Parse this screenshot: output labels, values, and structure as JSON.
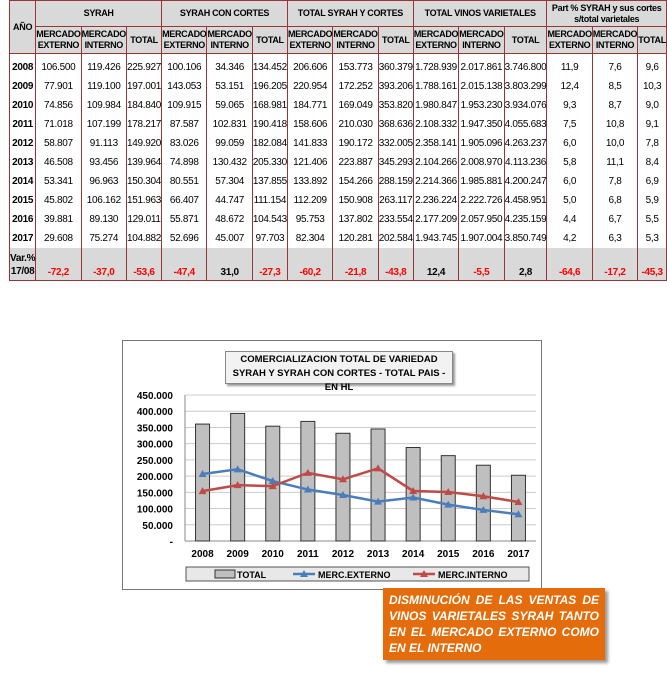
{
  "table": {
    "year_header": "AÑO",
    "groups": [
      "SYRAH",
      "SYRAH CON CORTES",
      "TOTAL SYRAH Y CORTES",
      "TOTAL VINOS VARIETALES",
      "Part % SYRAH y sus cortes s/total varietales"
    ],
    "subheaders": [
      [
        "MERCADO EXTERNO",
        "MERCADO INTERNO",
        "TOTAL"
      ],
      [
        "MERCADO EXTERNO",
        "MERCADO INTERNO",
        "TOTAL"
      ],
      [
        "MERCADO EXTERNO",
        "MERCADO INTERNO",
        "TOTAL"
      ],
      [
        "MERCADO EXTERNO",
        "MERCADO INTERNO",
        "TOTAL"
      ],
      [
        "MERCADO EXTERNO",
        "MERCADO INTERNO",
        "TOTAL"
      ]
    ],
    "rows": [
      [
        "2008",
        "106.500",
        "119.426",
        "225.927",
        "100.106",
        "34.346",
        "134.452",
        "206.606",
        "153.773",
        "360.379",
        "1.728.939",
        "2.017.861",
        "3.746.800",
        "11,9",
        "7,6",
        "9,6"
      ],
      [
        "2009",
        "77.901",
        "119.100",
        "197.001",
        "143.053",
        "53.151",
        "196.205",
        "220.954",
        "172.252",
        "393.206",
        "1.788.161",
        "2.015.138",
        "3.803.299",
        "12,4",
        "8,5",
        "10,3"
      ],
      [
        "2010",
        "74.856",
        "109.984",
        "184.840",
        "109.915",
        "59.065",
        "168.981",
        "184.771",
        "169.049",
        "353.820",
        "1.980.847",
        "1.953.230",
        "3.934.076",
        "9,3",
        "8,7",
        "9,0"
      ],
      [
        "2011",
        "71.018",
        "107.199",
        "178.217",
        "87.587",
        "102.831",
        "190.418",
        "158.606",
        "210.030",
        "368.636",
        "2.108.332",
        "1.947.350",
        "4.055.683",
        "7,5",
        "10,8",
        "9,1"
      ],
      [
        "2012",
        "58.807",
        "91.113",
        "149.920",
        "83.026",
        "99.059",
        "182.084",
        "141.833",
        "190.172",
        "332.005",
        "2.358.141",
        "1.905.096",
        "4.263.237",
        "6,0",
        "10,0",
        "7,8"
      ],
      [
        "2013",
        "46.508",
        "93.456",
        "139.964",
        "74.898",
        "130.432",
        "205.330",
        "121.406",
        "223.887",
        "345.293",
        "2.104.266",
        "2.008.970",
        "4.113.236",
        "5,8",
        "11,1",
        "8,4"
      ],
      [
        "2014",
        "53.341",
        "96.963",
        "150.304",
        "80.551",
        "57.304",
        "137.855",
        "133.892",
        "154.266",
        "288.159",
        "2.214.366",
        "1.985.881",
        "4.200.247",
        "6,0",
        "7,8",
        "6,9"
      ],
      [
        "2015",
        "45.802",
        "106.162",
        "151.963",
        "66.407",
        "44.747",
        "111.154",
        "112.209",
        "150.908",
        "263.117",
        "2.236.224",
        "2.222.726",
        "4.458.951",
        "5,0",
        "6,8",
        "5,9"
      ],
      [
        "2016",
        "39.881",
        "89.130",
        "129.011",
        "55.871",
        "48.672",
        "104.543",
        "95.753",
        "137.802",
        "233.554",
        "2.177.209",
        "2.057.950",
        "4.235.159",
        "4,4",
        "6,7",
        "5,5"
      ],
      [
        "2017",
        "29.608",
        "75.274",
        "104.882",
        "52.696",
        "45.007",
        "97.703",
        "82.304",
        "120.281",
        "202.584",
        "1.943.745",
        "1.907.004",
        "3.850.749",
        "4,2",
        "6,3",
        "5,3"
      ]
    ],
    "var_label": "Var.% 17/08",
    "var_values": [
      "-72,2",
      "-37,0",
      "-53,6",
      "-47,4",
      "31,0",
      "-27,3",
      "-60,2",
      "-21,8",
      "-43,8",
      "12,4",
      "-5,5",
      "2,8",
      "-64,6",
      "-17,2",
      "-45,3"
    ],
    "negative_color": "#ff0000"
  },
  "chart_data": {
    "type": "bar+line",
    "title": "COMERCIALIZACION TOTAL DE VARIEDAD SYRAH Y SYRAH CON CORTES - TOTAL PAIS - EN HL",
    "categories": [
      "2008",
      "2009",
      "2010",
      "2011",
      "2012",
      "2013",
      "2014",
      "2015",
      "2016",
      "2017"
    ],
    "ylim": [
      0,
      450000
    ],
    "yticks": [
      "-",
      "50.000",
      "100.000",
      "150.000",
      "200.000",
      "250.000",
      "300.000",
      "350.000",
      "400.000",
      "450.000"
    ],
    "grid": true,
    "legend_position": "bottom",
    "series": [
      {
        "name": "TOTAL",
        "kind": "bar",
        "color": "#bfbfbf",
        "values": [
          360379,
          393206,
          353820,
          368636,
          332005,
          345293,
          288159,
          263117,
          233554,
          202584
        ]
      },
      {
        "name": "MERC.EXTERNO",
        "kind": "line",
        "color": "#4a7ebb",
        "values": [
          206606,
          220954,
          184771,
          158606,
          141833,
          121406,
          133892,
          112209,
          95753,
          82304
        ]
      },
      {
        "name": "MERC.INTERNO",
        "kind": "line",
        "color": "#be4b48",
        "values": [
          153773,
          172252,
          169049,
          210030,
          190172,
          223887,
          154266,
          150908,
          137802,
          120281
        ]
      }
    ]
  },
  "callout": "DISMINUCIÓN DE LAS VENTAS DE VINOS VARIETALES SYRAH TANTO EN EL MERCADO EXTERNO COMO EN EL INTERNO"
}
